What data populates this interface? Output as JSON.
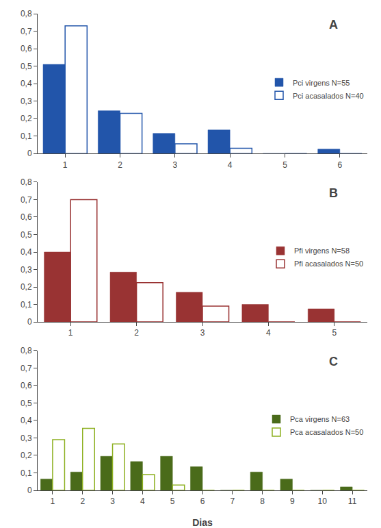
{
  "chart_data": [
    {
      "type": "bar",
      "categories": [
        1,
        2,
        3,
        4,
        5,
        6
      ],
      "series": [
        {
          "name": "Pci virgens N=55",
          "color": "#2255AA",
          "values": [
            0.51,
            0.245,
            0.115,
            0.135,
            0.0,
            0.025
          ]
        },
        {
          "name": "Pci acasalados N=40",
          "color": "#2255AA",
          "marker": "hollow",
          "values": [
            0.73,
            0.23,
            0.055,
            0.03,
            0.0,
            0.0
          ]
        }
      ],
      "annotations": [
        "A"
      ],
      "ylim": [
        0,
        0.8
      ],
      "yticks": [
        0,
        {
          "value": 0.1,
          "label": "0,1"
        },
        {
          "value": 0.2,
          "label": "0,2"
        },
        {
          "value": 0.3,
          "label": "0,3"
        },
        {
          "value": 0.4,
          "label": "0,4"
        },
        {
          "value": 0.5,
          "label": "0,5"
        },
        {
          "value": 0.6,
          "label": "0,6"
        },
        {
          "value": 0.7,
          "label": "0,7"
        },
        {
          "value": 0.8,
          "label": "0,8"
        }
      ],
      "grid": false,
      "legend": "right"
    },
    {
      "type": "bar",
      "categories": [
        1,
        2,
        3,
        4,
        5
      ],
      "series": [
        {
          "name": "Pfi virgens N=58",
          "color": "#993333",
          "values": [
            0.4,
            0.285,
            0.17,
            0.1,
            0.075
          ]
        },
        {
          "name": "Pfi acasalados N=50",
          "color": "#993333",
          "marker": "hollow",
          "values": [
            0.7,
            0.225,
            0.09,
            0.0,
            0.0
          ]
        }
      ],
      "annotations": [
        "B"
      ],
      "ylim": [
        0,
        0.8
      ],
      "yticks": [
        0,
        {
          "value": 0.1,
          "label": "0,1"
        },
        {
          "value": 0.2,
          "label": "0,2"
        },
        {
          "value": 0.3,
          "label": "0,3"
        },
        {
          "value": 0.4,
          "label": "0,4"
        },
        {
          "value": 0.5,
          "label": "0,5"
        },
        {
          "value": 0.6,
          "label": "0,6"
        },
        {
          "value": 0.7,
          "label": "0,7"
        },
        {
          "value": 0.8,
          "label": "0,8"
        }
      ],
      "grid": false,
      "legend": "right"
    },
    {
      "type": "bar",
      "categories": [
        1,
        2,
        3,
        4,
        5,
        6,
        7,
        8,
        9,
        10,
        11
      ],
      "series": [
        {
          "name": "Pca virgens N=63",
          "color": "#4A6B1A",
          "values": [
            0.065,
            0.105,
            0.195,
            0.165,
            0.195,
            0.135,
            0.0,
            0.105,
            0.065,
            0.0,
            0.02
          ]
        },
        {
          "name": "Pca acasalados N=50",
          "color": "#8DB020",
          "marker": "hollow",
          "values": [
            0.29,
            0.355,
            0.265,
            0.09,
            0.03,
            0.0,
            0.0,
            0.0,
            0.0,
            0.0,
            0.0
          ]
        }
      ],
      "annotations": [
        "C"
      ],
      "xlabel": "Dias",
      "ylim": [
        0,
        0.8
      ],
      "yticks": [
        0,
        {
          "value": 0.1,
          "label": "0,1"
        },
        {
          "value": 0.2,
          "label": "0,2"
        },
        {
          "value": 0.3,
          "label": "0,3"
        },
        {
          "value": 0.4,
          "label": "0,4"
        },
        {
          "value": 0.5,
          "label": "0,5"
        },
        {
          "value": 0.6,
          "label": "0,6"
        },
        {
          "value": 0.7,
          "label": "0,7"
        },
        {
          "value": 0.8,
          "label": "0,8"
        }
      ],
      "grid": false,
      "legend": "right"
    }
  ]
}
